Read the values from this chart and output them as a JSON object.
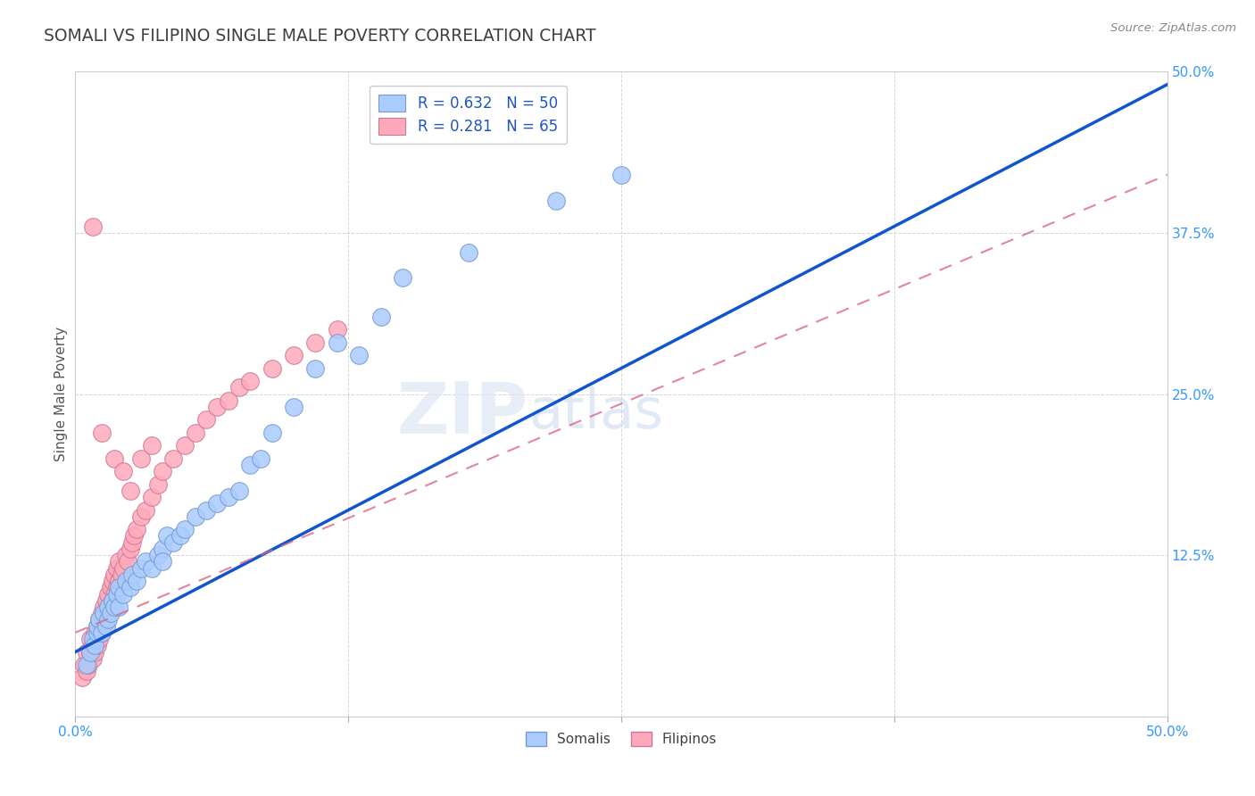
{
  "title": "SOMALI VS FILIPINO SINGLE MALE POVERTY CORRELATION CHART",
  "source_text": "Source: ZipAtlas.com",
  "ylabel": "Single Male Poverty",
  "xlim": [
    0.0,
    0.5
  ],
  "ylim": [
    0.0,
    0.5
  ],
  "xticks": [
    0.0,
    0.125,
    0.25,
    0.375,
    0.5
  ],
  "yticks": [
    0.0,
    0.125,
    0.25,
    0.375,
    0.5
  ],
  "xtick_labels_show": [
    "0.0%",
    "",
    "",
    "",
    "50.0%"
  ],
  "ytick_labels_show": [
    "",
    "12.5%",
    "25.0%",
    "37.5%",
    "50.0%"
  ],
  "background_color": "#ffffff",
  "grid_color": "#cccccc",
  "title_color": "#404040",
  "axis_label_color": "#555555",
  "tick_color": "#3399ff",
  "somali_color": "#aaccff",
  "somali_edge_color": "#7799cc",
  "filipino_color": "#ffaabb",
  "filipino_edge_color": "#cc7799",
  "somali_trend_color": "#1155cc",
  "filipino_trend_color": "#dd6688",
  "legend_line1": "R = 0.632   N = 50",
  "legend_line2": "R = 0.281   N = 65",
  "somali_label": "Somalis",
  "filipino_label": "Filipinos",
  "watermark_zip": "ZIP",
  "watermark_atlas": "atlas",
  "somali_x": [
    0.005,
    0.007,
    0.008,
    0.009,
    0.01,
    0.01,
    0.011,
    0.012,
    0.013,
    0.014,
    0.015,
    0.015,
    0.016,
    0.017,
    0.018,
    0.019,
    0.02,
    0.02,
    0.022,
    0.023,
    0.025,
    0.026,
    0.028,
    0.03,
    0.032,
    0.035,
    0.038,
    0.04,
    0.04,
    0.042,
    0.045,
    0.048,
    0.05,
    0.055,
    0.06,
    0.065,
    0.07,
    0.075,
    0.08,
    0.085,
    0.09,
    0.1,
    0.11,
    0.12,
    0.13,
    0.14,
    0.15,
    0.18,
    0.22,
    0.25
  ],
  "somali_y": [
    0.04,
    0.05,
    0.06,
    0.055,
    0.065,
    0.07,
    0.075,
    0.065,
    0.08,
    0.07,
    0.075,
    0.085,
    0.08,
    0.09,
    0.085,
    0.095,
    0.085,
    0.1,
    0.095,
    0.105,
    0.1,
    0.11,
    0.105,
    0.115,
    0.12,
    0.115,
    0.125,
    0.13,
    0.12,
    0.14,
    0.135,
    0.14,
    0.145,
    0.155,
    0.16,
    0.165,
    0.17,
    0.175,
    0.195,
    0.2,
    0.22,
    0.24,
    0.27,
    0.29,
    0.28,
    0.31,
    0.34,
    0.36,
    0.4,
    0.42
  ],
  "filipino_x": [
    0.003,
    0.004,
    0.005,
    0.005,
    0.006,
    0.007,
    0.007,
    0.008,
    0.008,
    0.009,
    0.009,
    0.01,
    0.01,
    0.011,
    0.011,
    0.012,
    0.012,
    0.013,
    0.013,
    0.014,
    0.014,
    0.015,
    0.015,
    0.016,
    0.016,
    0.017,
    0.017,
    0.018,
    0.018,
    0.019,
    0.019,
    0.02,
    0.02,
    0.021,
    0.022,
    0.023,
    0.024,
    0.025,
    0.026,
    0.027,
    0.028,
    0.03,
    0.032,
    0.035,
    0.038,
    0.04,
    0.045,
    0.05,
    0.055,
    0.06,
    0.065,
    0.07,
    0.075,
    0.08,
    0.09,
    0.1,
    0.11,
    0.12,
    0.025,
    0.03,
    0.008,
    0.012,
    0.018,
    0.022,
    0.035
  ],
  "filipino_y": [
    0.03,
    0.04,
    0.035,
    0.05,
    0.04,
    0.05,
    0.06,
    0.045,
    0.055,
    0.05,
    0.065,
    0.055,
    0.07,
    0.06,
    0.075,
    0.065,
    0.08,
    0.07,
    0.085,
    0.075,
    0.09,
    0.08,
    0.095,
    0.085,
    0.1,
    0.09,
    0.105,
    0.095,
    0.11,
    0.1,
    0.115,
    0.105,
    0.12,
    0.11,
    0.115,
    0.125,
    0.12,
    0.13,
    0.135,
    0.14,
    0.145,
    0.155,
    0.16,
    0.17,
    0.18,
    0.19,
    0.2,
    0.21,
    0.22,
    0.23,
    0.24,
    0.245,
    0.255,
    0.26,
    0.27,
    0.28,
    0.29,
    0.3,
    0.175,
    0.2,
    0.38,
    0.22,
    0.2,
    0.19,
    0.21
  ],
  "somali_trend_start_x": 0.0,
  "somali_trend_start_y": 0.05,
  "somali_trend_end_x": 0.5,
  "somali_trend_end_y": 0.49,
  "filipino_trend_start_x": 0.0,
  "filipino_trend_start_y": 0.065,
  "filipino_trend_end_x": 0.5,
  "filipino_trend_end_y": 0.42
}
